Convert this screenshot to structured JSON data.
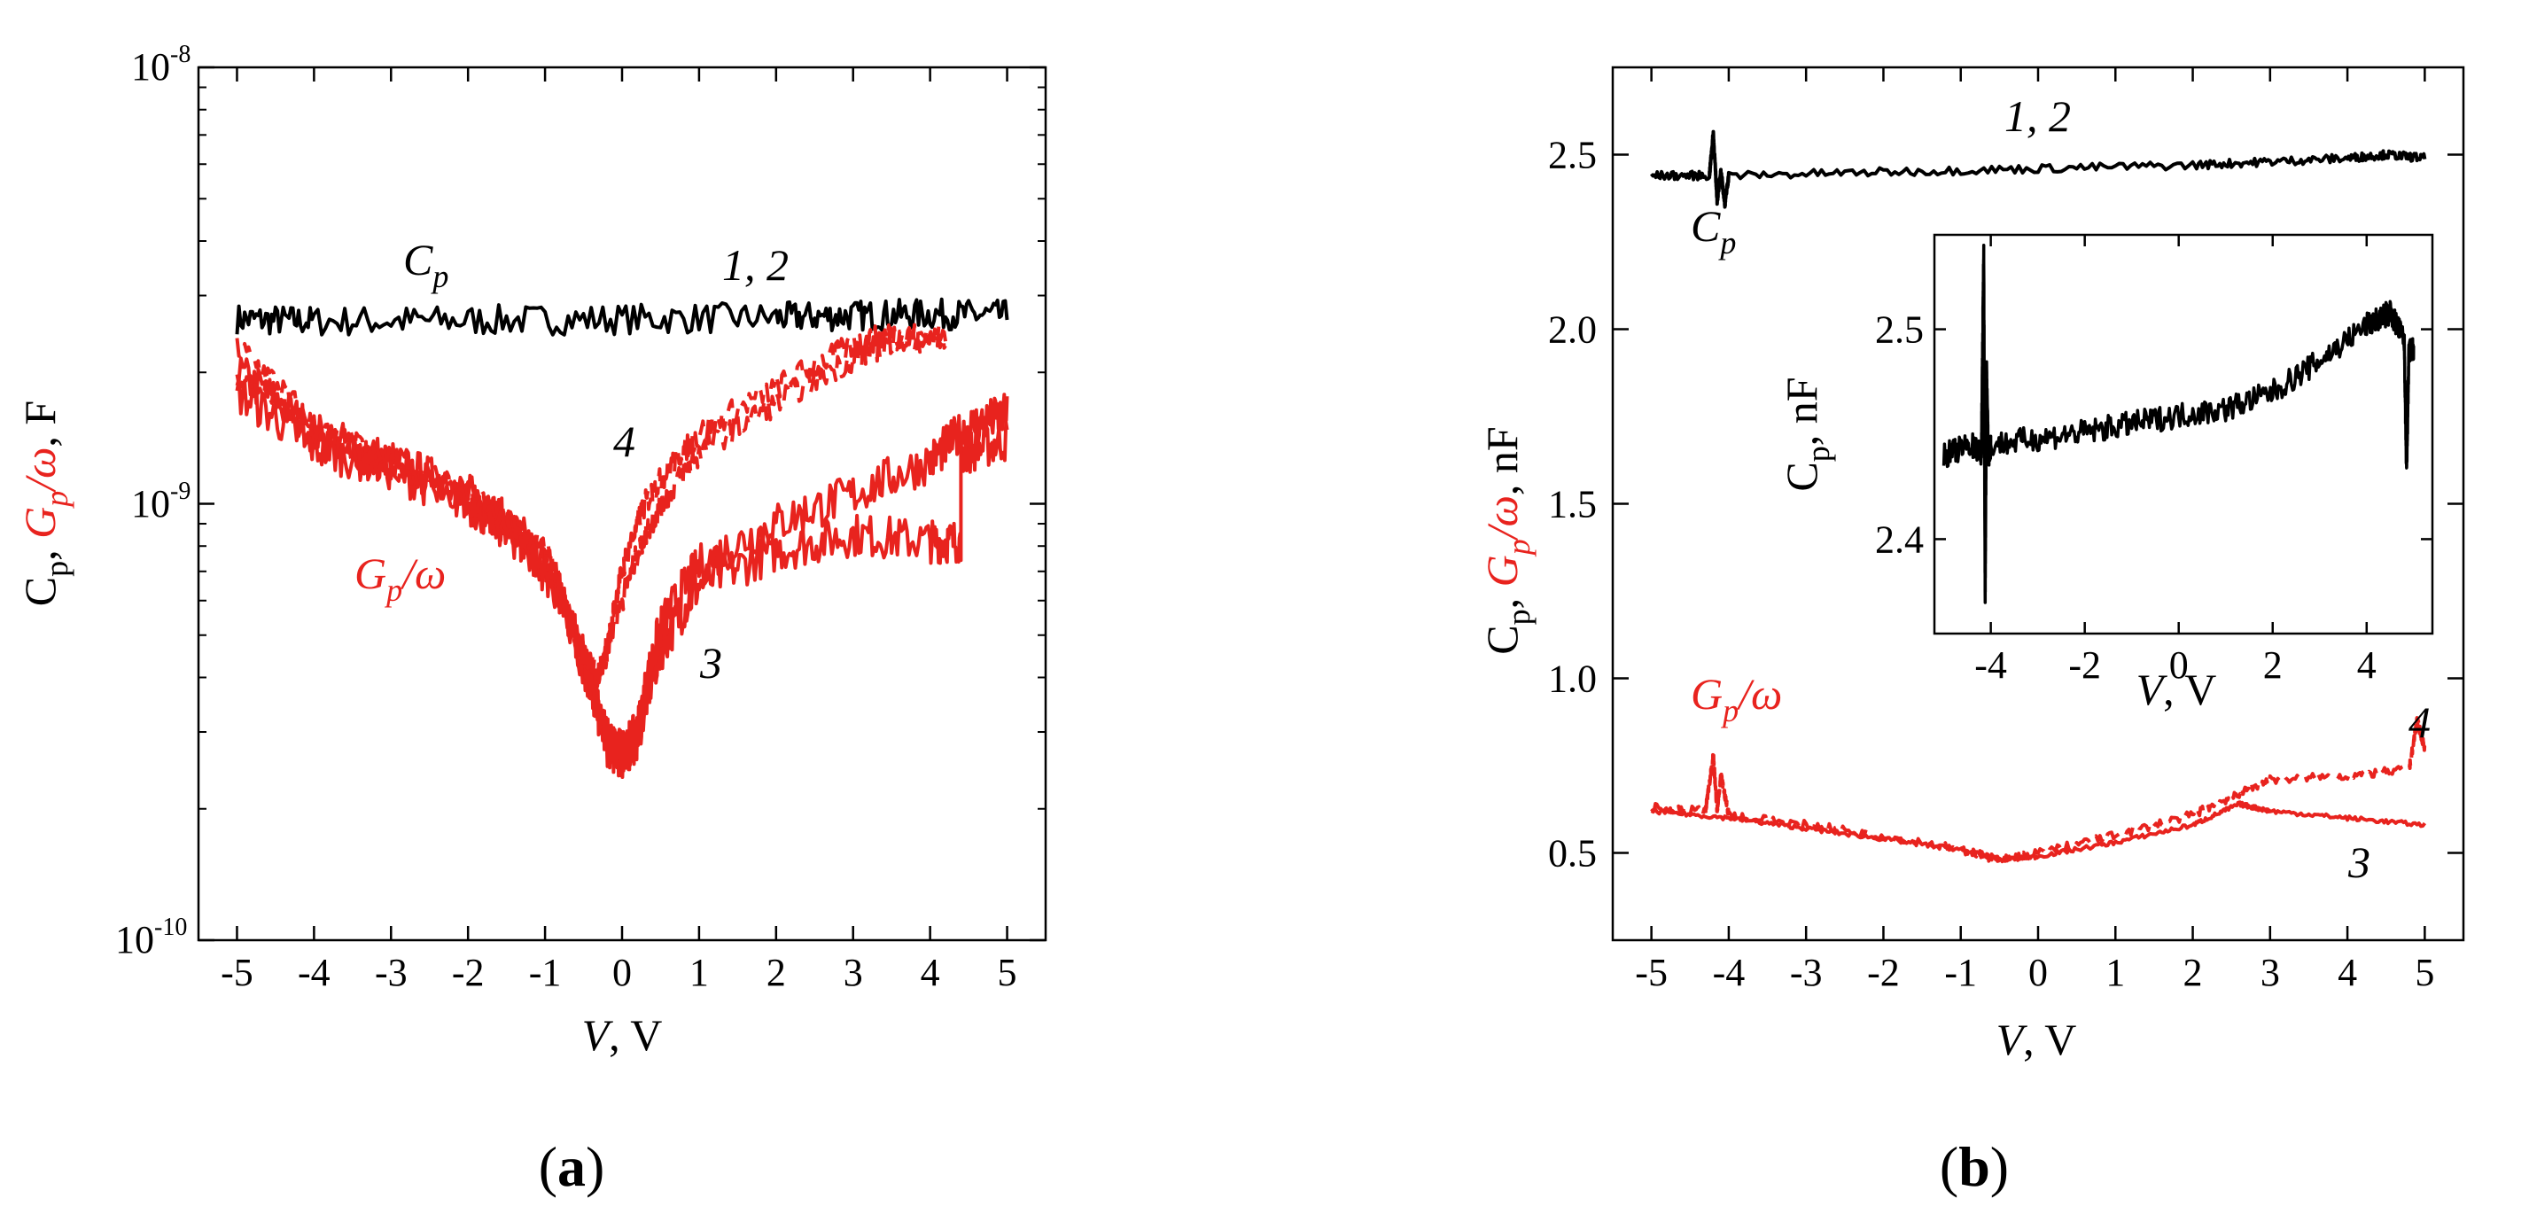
{
  "colors": {
    "black": "#000000",
    "red": "#e8231e"
  },
  "panels": {
    "a": {
      "label_prefix": "(",
      "label_letter": "a",
      "label_suffix": ")"
    },
    "b": {
      "label_prefix": "(",
      "label_letter": "b",
      "label_suffix": ")"
    }
  },
  "chart_data": [
    {
      "id": "a",
      "type": "line",
      "yscale": "log",
      "xlim": [
        -5.5,
        5.5
      ],
      "ylim": [
        1e-10,
        1e-08
      ],
      "x_ticks": [
        -5,
        -4,
        -3,
        -2,
        -1,
        0,
        1,
        2,
        3,
        4,
        5
      ],
      "x_tick_labels": [
        "-5",
        "-4",
        "-3",
        "-2",
        "-1",
        "0",
        "1",
        "2",
        "3",
        "4",
        "5"
      ],
      "y_ticks": [
        {
          "value": 1e-10,
          "base": "10",
          "exp": "-10"
        },
        {
          "value": 1e-09,
          "base": "10",
          "exp": "-9"
        },
        {
          "value": 1e-08,
          "base": "10",
          "exp": "-8"
        }
      ],
      "xlabel": {
        "var": "V",
        "unit": ", V"
      },
      "ylabel": {
        "p1": "C",
        "s1": "p",
        "c1": ", ",
        "p2": "G",
        "s2": "p",
        "p2b": "/ω",
        "c2": ", ",
        "unit": "F"
      },
      "annotations": {
        "cp": {
          "main": "C",
          "sub": "p"
        },
        "gp": {
          "main": "G",
          "sub": "p",
          "rest": "/ω"
        },
        "n12": "1, 2",
        "n3": "3",
        "n4": "4"
      },
      "series": [
        {
          "name": "1, 2 (C_p)",
          "color": "#000000",
          "style": "solid",
          "noise": 0.035,
          "x": [
            -5,
            -4,
            -2,
            0,
            2,
            3,
            4,
            5
          ],
          "y": [
            2.65e-09,
            2.62e-09,
            2.63e-09,
            2.65e-09,
            2.67e-09,
            2.7e-09,
            2.72e-09,
            2.7e-09
          ]
        },
        {
          "name": "3 forward (G_p/ω)",
          "color": "#e8231e",
          "style": "solid",
          "noise": 0.05,
          "x": [
            -5,
            -4,
            -3,
            -2,
            -1.5,
            -1,
            -0.5,
            -0.2,
            0,
            0.2,
            0.5,
            1,
            2,
            3,
            4,
            4.4,
            4.4,
            5
          ],
          "y": [
            2e-09,
            1.45e-09,
            1.25e-09,
            1.05e-09,
            9e-10,
            7.2e-10,
            4.2e-10,
            2.8e-10,
            2.6e-10,
            2.9e-10,
            4.6e-10,
            6.5e-10,
            7.8e-10,
            8.5e-10,
            8.2e-10,
            8.2e-10,
            1.3e-09,
            1.4e-09
          ]
        },
        {
          "name": "3 reverse (G_p/ω)",
          "color": "#e8231e",
          "style": "solid",
          "noise": 0.05,
          "x": [
            -5,
            -4,
            -3,
            -2,
            -1.5,
            -1,
            -0.5,
            -0.2,
            0,
            0.2,
            0.5,
            1,
            2,
            3,
            4,
            4.5,
            5
          ],
          "y": [
            1.8e-09,
            1.35e-09,
            1.2e-09,
            1e-09,
            8.7e-10,
            7e-10,
            4.4e-10,
            2.9e-10,
            2.7e-10,
            3e-10,
            5.2e-10,
            7.2e-10,
            9e-10,
            1.05e-09,
            1.25e-09,
            1.5e-09,
            1.6e-09
          ]
        },
        {
          "name": "4 forward (G_p/ω)",
          "color": "#e8231e",
          "style": "dashed",
          "noise": 0.03,
          "x": [
            -5,
            -4,
            -3,
            -2,
            -1,
            -0.6,
            -0.4,
            -0.2,
            0,
            0.3,
            0.6,
            1,
            2,
            3,
            3.5,
            4.2
          ],
          "y": [
            2.3e-09,
            1.5e-09,
            1.25e-09,
            1.05e-09,
            8e-10,
            5e-10,
            3.8e-10,
            4.5e-10,
            7e-10,
            1e-09,
            1.2e-09,
            1.45e-09,
            1.85e-09,
            2.3e-09,
            2.45e-09,
            2.4e-09
          ]
        },
        {
          "name": "4 reverse (G_p/ω)",
          "color": "#e8231e",
          "style": "dashed",
          "noise": 0.03,
          "x": [
            -5,
            -4,
            -3,
            -2,
            -1,
            -0.6,
            -0.3,
            0,
            0.3,
            0.6,
            1,
            2,
            3,
            3.5,
            4.2
          ],
          "y": [
            2e-09,
            1.45e-09,
            1.2e-09,
            1e-09,
            7.6e-10,
            4.8e-10,
            4e-10,
            6e-10,
            8.5e-10,
            1.05e-09,
            1.3e-09,
            1.7e-09,
            2.15e-09,
            2.35e-09,
            2.35e-09
          ]
        }
      ]
    },
    {
      "id": "b",
      "type": "line",
      "yscale": "linear",
      "xlim": [
        -5.5,
        5.5
      ],
      "ylim": [
        0.25,
        2.75
      ],
      "x_ticks": [
        -5,
        -4,
        -3,
        -2,
        -1,
        0,
        1,
        2,
        3,
        4,
        5
      ],
      "x_tick_labels": [
        "-5",
        "-4",
        "-3",
        "-2",
        "-1",
        "0",
        "1",
        "2",
        "3",
        "4",
        "5"
      ],
      "y_ticks": [
        0.5,
        1.0,
        1.5,
        2.0,
        2.5
      ],
      "y_tick_labels": [
        "0.5",
        "1.0",
        "1.5",
        "2.0",
        "2.5"
      ],
      "xlabel": {
        "var": "V",
        "unit": ", V"
      },
      "ylabel": {
        "p1": "C",
        "s1": "p",
        "c1": ", ",
        "p2": "G",
        "s2": "p",
        "p2b": "/ω",
        "c2": ", ",
        "unit": "nF"
      },
      "annotations": {
        "cp": {
          "main": "C",
          "sub": "p"
        },
        "gp": {
          "main": "G",
          "sub": "p",
          "rest": "/ω"
        },
        "n12": "1, 2",
        "n3": "3",
        "n4": "4"
      },
      "series": [
        {
          "name": "1, 2 (C_p)",
          "color": "#000000",
          "style": "solid",
          "noise": 0.012,
          "x": [
            -5,
            -4.25,
            -4.2,
            -4.15,
            -4.1,
            -4.05,
            -4,
            -2,
            0,
            2,
            3,
            4,
            4.5,
            5
          ],
          "y": [
            2.44,
            2.44,
            2.56,
            2.37,
            2.45,
            2.36,
            2.44,
            2.45,
            2.46,
            2.47,
            2.48,
            2.49,
            2.5,
            2.49
          ]
        },
        {
          "name": "3 (G_p/ω)",
          "color": "#e8231e",
          "style": "solid",
          "noise": 0.006,
          "x": [
            -5,
            -4,
            -3,
            -2,
            -1,
            -0.5,
            0,
            1,
            2,
            2.6,
            3,
            4,
            5
          ],
          "y": [
            0.62,
            0.6,
            0.57,
            0.54,
            0.51,
            0.48,
            0.49,
            0.53,
            0.58,
            0.64,
            0.62,
            0.6,
            0.58
          ]
        },
        {
          "name": "4 (G_p/ω)",
          "color": "#e8231e",
          "style": "dashed",
          "noise": 0.012,
          "x": [
            -5,
            -4.3,
            -4.25,
            -4.2,
            -4.15,
            -4.1,
            -4,
            -3,
            -2,
            -1,
            -0.5,
            0,
            1,
            2,
            2.5,
            3,
            4,
            4.8,
            4.9,
            5
          ],
          "y": [
            0.63,
            0.62,
            0.7,
            0.78,
            0.62,
            0.72,
            0.61,
            0.58,
            0.55,
            0.51,
            0.48,
            0.5,
            0.55,
            0.61,
            0.66,
            0.71,
            0.72,
            0.74,
            0.88,
            0.8
          ]
        }
      ],
      "inset": {
        "xlim": [
          -5.2,
          5.4
        ],
        "ylim": [
          2.355,
          2.545
        ],
        "x_ticks": [
          -4,
          -2,
          0,
          2,
          4
        ],
        "x_tick_labels": [
          "-4",
          "-2",
          "0",
          "2",
          "4"
        ],
        "y_ticks": [
          2.4,
          2.5
        ],
        "y_tick_labels": [
          "2.4",
          "2.5"
        ],
        "xlabel": {
          "var": "V",
          "unit": ", V"
        },
        "ylabel": {
          "main": "C",
          "sub": "p",
          "unit": ", nF"
        },
        "series": [
          {
            "name": "C_p inset",
            "color": "#000000",
            "style": "solid",
            "noise": 0.006,
            "x": [
              -5,
              -4.4,
              -4.2,
              -4.15,
              -4.12,
              -4.09,
              -4.05,
              -4,
              -3,
              -2,
              -1,
              0,
              1,
              2,
              3,
              4,
              4.5,
              4.8,
              4.85,
              4.9,
              5
            ],
            "y": [
              2.44,
              2.445,
              2.44,
              2.54,
              2.37,
              2.48,
              2.44,
              2.445,
              2.448,
              2.451,
              2.455,
              2.459,
              2.462,
              2.47,
              2.485,
              2.502,
              2.508,
              2.495,
              2.43,
              2.49,
              2.49
            ]
          }
        ]
      }
    }
  ]
}
